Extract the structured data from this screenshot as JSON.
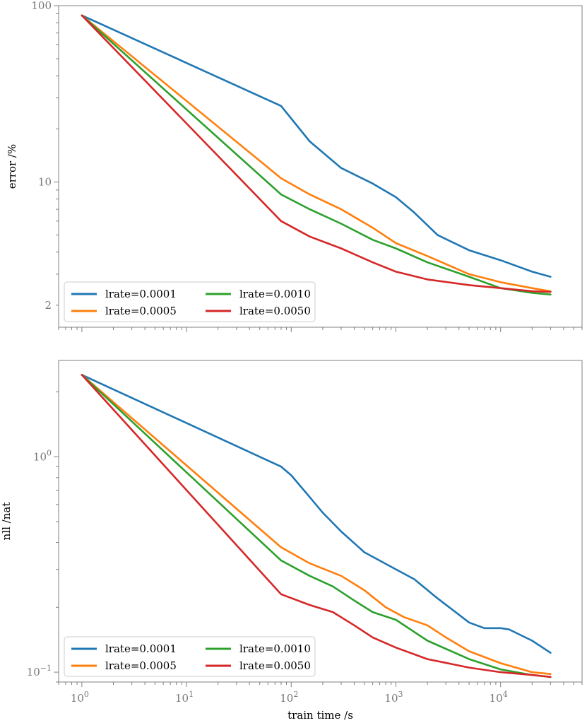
{
  "chart_data": [
    {
      "type": "line",
      "xscale": "log",
      "yscale": "log",
      "xlim": [
        0.6,
        60000
      ],
      "ylim": [
        1.5,
        100
      ],
      "xlabel": "",
      "ylabel": "error /%",
      "y_ticks": [
        {
          "value": 100,
          "label": "100"
        },
        {
          "value": 10,
          "label": "10"
        },
        {
          "value": 2,
          "label": "2"
        }
      ],
      "x_ticks": [],
      "legend_position": "lower-left",
      "series": [
        {
          "name": "lrate=0.0001",
          "color": "#1f77b4",
          "x": [
            1,
            80,
            150,
            300,
            600,
            1000,
            1500,
            2500,
            5000,
            10000,
            20000,
            30000
          ],
          "y": [
            88,
            27,
            17,
            12,
            9.8,
            8.2,
            6.7,
            5.0,
            4.1,
            3.6,
            3.1,
            2.9
          ]
        },
        {
          "name": "lrate=0.0005",
          "color": "#ff7f0e",
          "x": [
            1,
            80,
            150,
            300,
            600,
            1000,
            2000,
            5000,
            10000,
            20000,
            30000
          ],
          "y": [
            88,
            10.5,
            8.5,
            7.0,
            5.5,
            4.5,
            3.8,
            3.0,
            2.7,
            2.5,
            2.4
          ]
        },
        {
          "name": "lrate=0.0010",
          "color": "#2ca02c",
          "x": [
            1,
            80,
            150,
            300,
            600,
            1000,
            2000,
            5000,
            10000,
            20000,
            30000
          ],
          "y": [
            88,
            8.5,
            7.0,
            5.8,
            4.7,
            4.2,
            3.5,
            2.9,
            2.5,
            2.35,
            2.3
          ]
        },
        {
          "name": "lrate=0.0050",
          "color": "#d62728",
          "x": [
            1,
            80,
            150,
            300,
            600,
            1000,
            2000,
            5000,
            10000,
            20000,
            30000
          ],
          "y": [
            88,
            6.0,
            4.9,
            4.2,
            3.5,
            3.1,
            2.8,
            2.6,
            2.5,
            2.4,
            2.38
          ]
        }
      ]
    },
    {
      "type": "line",
      "xscale": "log",
      "yscale": "log",
      "xlim": [
        0.6,
        60000
      ],
      "ylim": [
        0.09,
        2.8
      ],
      "xlabel": "train time /s",
      "ylabel": "nll /nat",
      "y_ticks": [
        {
          "value": 1,
          "label": "10⁰",
          "base": "10",
          "exp": "0"
        },
        {
          "value": 0.1,
          "label": "10⁻¹",
          "base": "10",
          "exp": "−1"
        }
      ],
      "x_ticks": [
        {
          "value": 1,
          "label": "10⁰",
          "base": "10",
          "exp": "0"
        },
        {
          "value": 10,
          "label": "10¹",
          "base": "10",
          "exp": "1"
        },
        {
          "value": 100,
          "label": "10²",
          "base": "10",
          "exp": "2"
        },
        {
          "value": 1000,
          "label": "10³",
          "base": "10",
          "exp": "3"
        },
        {
          "value": 10000,
          "label": "10⁴",
          "base": "10",
          "exp": "4"
        }
      ],
      "legend_position": "lower-left",
      "series": [
        {
          "name": "lrate=0.0001",
          "color": "#1f77b4",
          "x": [
            1,
            80,
            100,
            150,
            200,
            300,
            500,
            1000,
            1500,
            2500,
            5000,
            7000,
            10000,
            12000,
            20000,
            30000
          ],
          "y": [
            2.4,
            0.9,
            0.82,
            0.65,
            0.55,
            0.45,
            0.36,
            0.3,
            0.27,
            0.22,
            0.17,
            0.16,
            0.16,
            0.158,
            0.14,
            0.123
          ]
        },
        {
          "name": "lrate=0.0005",
          "color": "#ff7f0e",
          "x": [
            1,
            80,
            150,
            300,
            500,
            800,
            1200,
            2000,
            3000,
            5000,
            10000,
            20000,
            30000
          ],
          "y": [
            2.4,
            0.38,
            0.32,
            0.28,
            0.24,
            0.2,
            0.18,
            0.165,
            0.145,
            0.125,
            0.11,
            0.1,
            0.098
          ]
        },
        {
          "name": "lrate=0.0010",
          "color": "#2ca02c",
          "x": [
            1,
            80,
            150,
            250,
            400,
            600,
            1000,
            2000,
            5000,
            10000,
            20000,
            30000
          ],
          "y": [
            2.4,
            0.33,
            0.28,
            0.25,
            0.215,
            0.19,
            0.175,
            0.14,
            0.115,
            0.103,
            0.097,
            0.095
          ]
        },
        {
          "name": "lrate=0.0050",
          "color": "#d62728",
          "x": [
            1,
            80,
            150,
            250,
            400,
            600,
            1000,
            2000,
            5000,
            10000,
            20000,
            30000
          ],
          "y": [
            2.4,
            0.23,
            0.205,
            0.19,
            0.165,
            0.145,
            0.13,
            0.115,
            0.105,
            0.1,
            0.097,
            0.095
          ]
        }
      ]
    }
  ]
}
